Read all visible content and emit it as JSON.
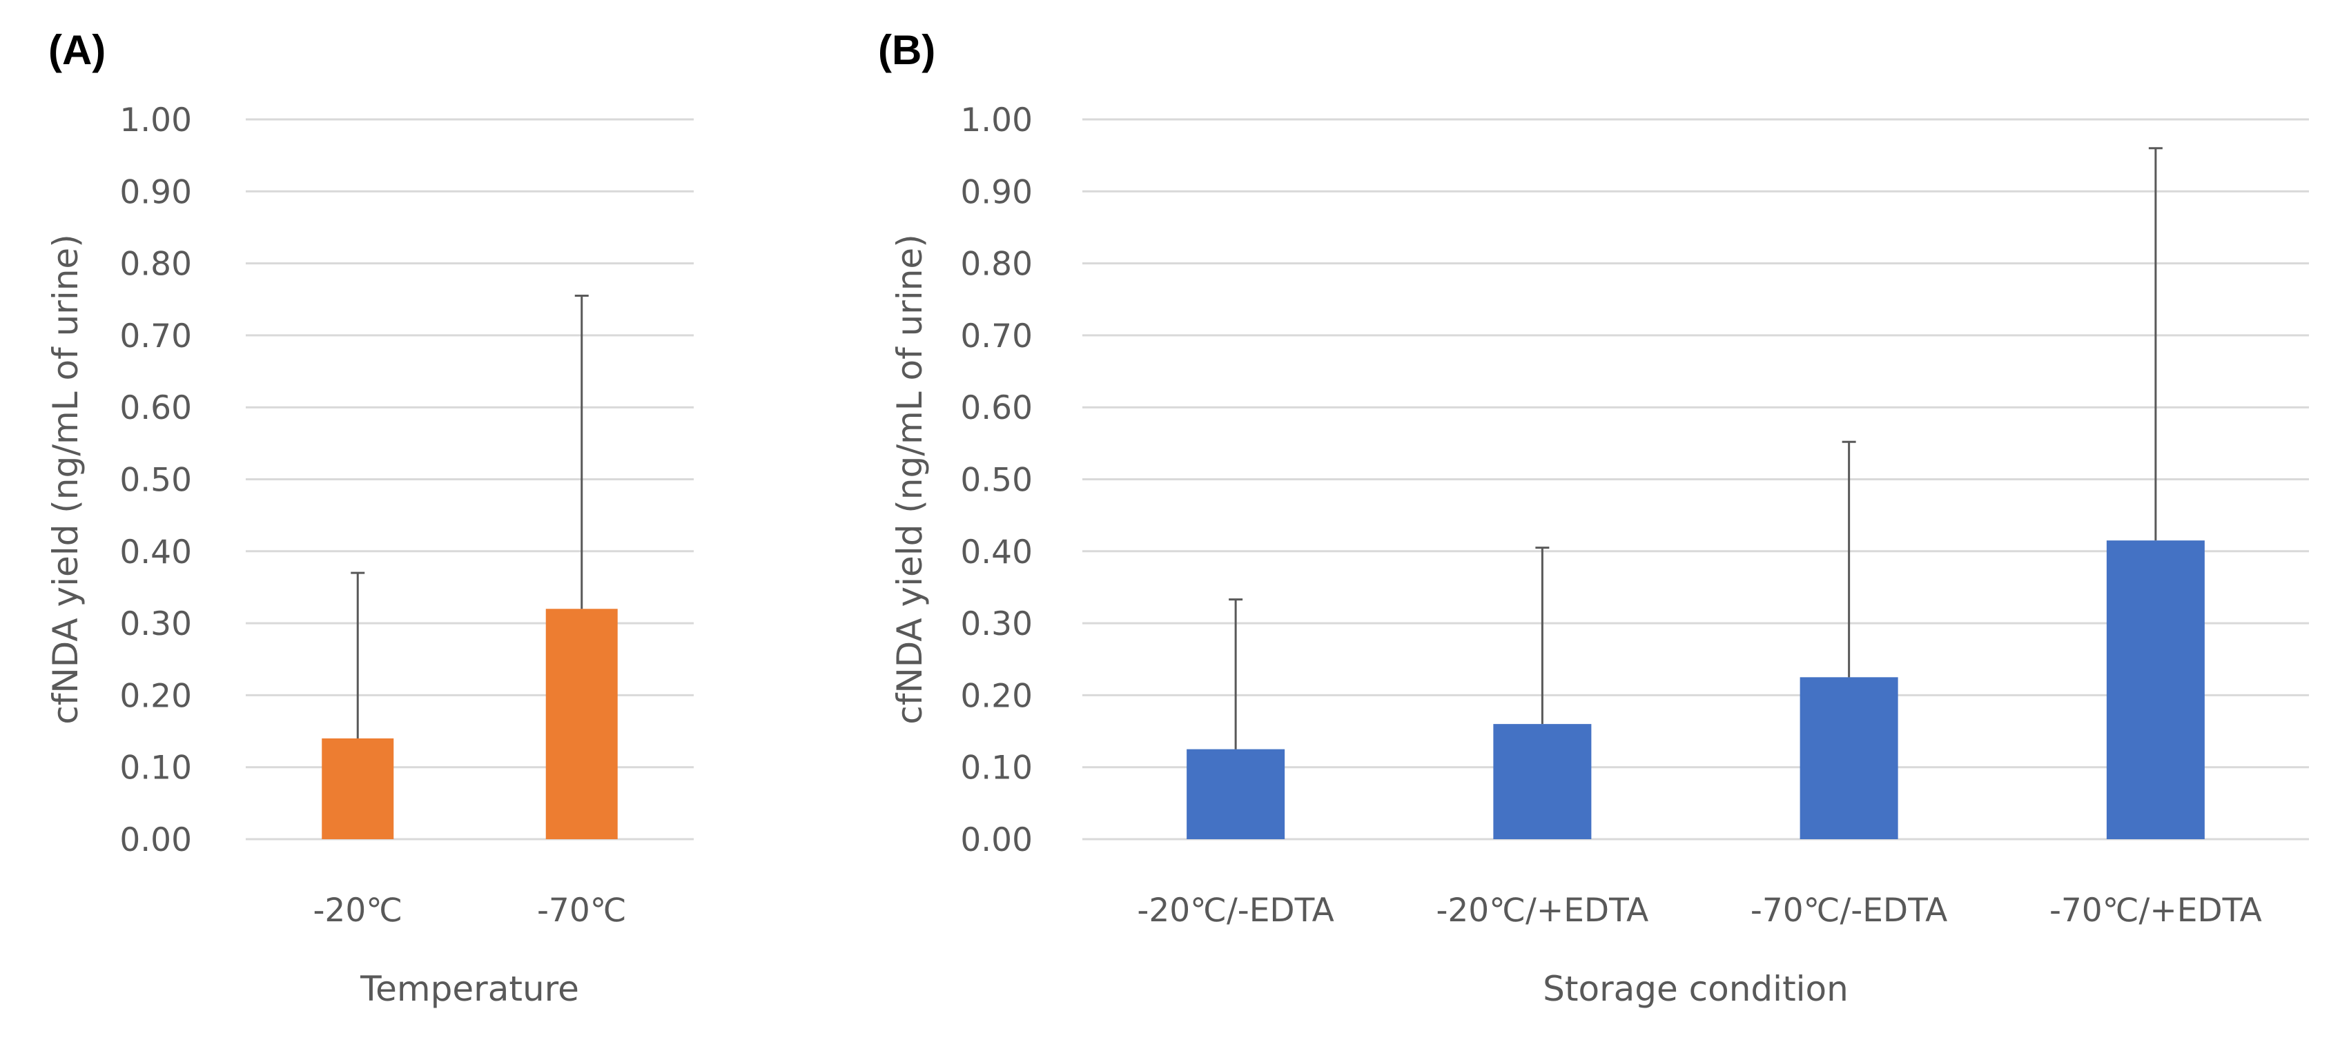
{
  "chart_data": [
    {
      "type": "bar",
      "panel_label": "(A)",
      "categories": [
        "-20℃",
        "-70℃"
      ],
      "values": [
        0.14,
        0.32
      ],
      "error_upper": [
        0.37,
        0.755
      ],
      "color": "#ED7D31",
      "xlabel": "Temperature",
      "ylabel": "cfNDA yield (ng/mL of urine)",
      "ylim": [
        0,
        1
      ],
      "yticks": [
        "0.00",
        "0.10",
        "0.20",
        "0.30",
        "0.40",
        "0.50",
        "0.60",
        "0.70",
        "0.80",
        "0.90",
        "1.00"
      ],
      "grid": true
    },
    {
      "type": "bar",
      "panel_label": "(B)",
      "categories": [
        "-20℃/-EDTA",
        "-20℃/+EDTA",
        "-70℃/-EDTA",
        "-70℃/+EDTA"
      ],
      "values": [
        0.125,
        0.16,
        0.225,
        0.415
      ],
      "error_upper": [
        0.333,
        0.405,
        0.552,
        0.96
      ],
      "color": "#4472C4",
      "xlabel": "Storage condition",
      "ylabel": "cfNDA yield (ng/mL of urine)",
      "ylim": [
        0,
        1
      ],
      "yticks": [
        "0.00",
        "0.10",
        "0.20",
        "0.30",
        "0.40",
        "0.50",
        "0.60",
        "0.70",
        "0.80",
        "0.90",
        "1.00"
      ],
      "grid": true
    }
  ]
}
